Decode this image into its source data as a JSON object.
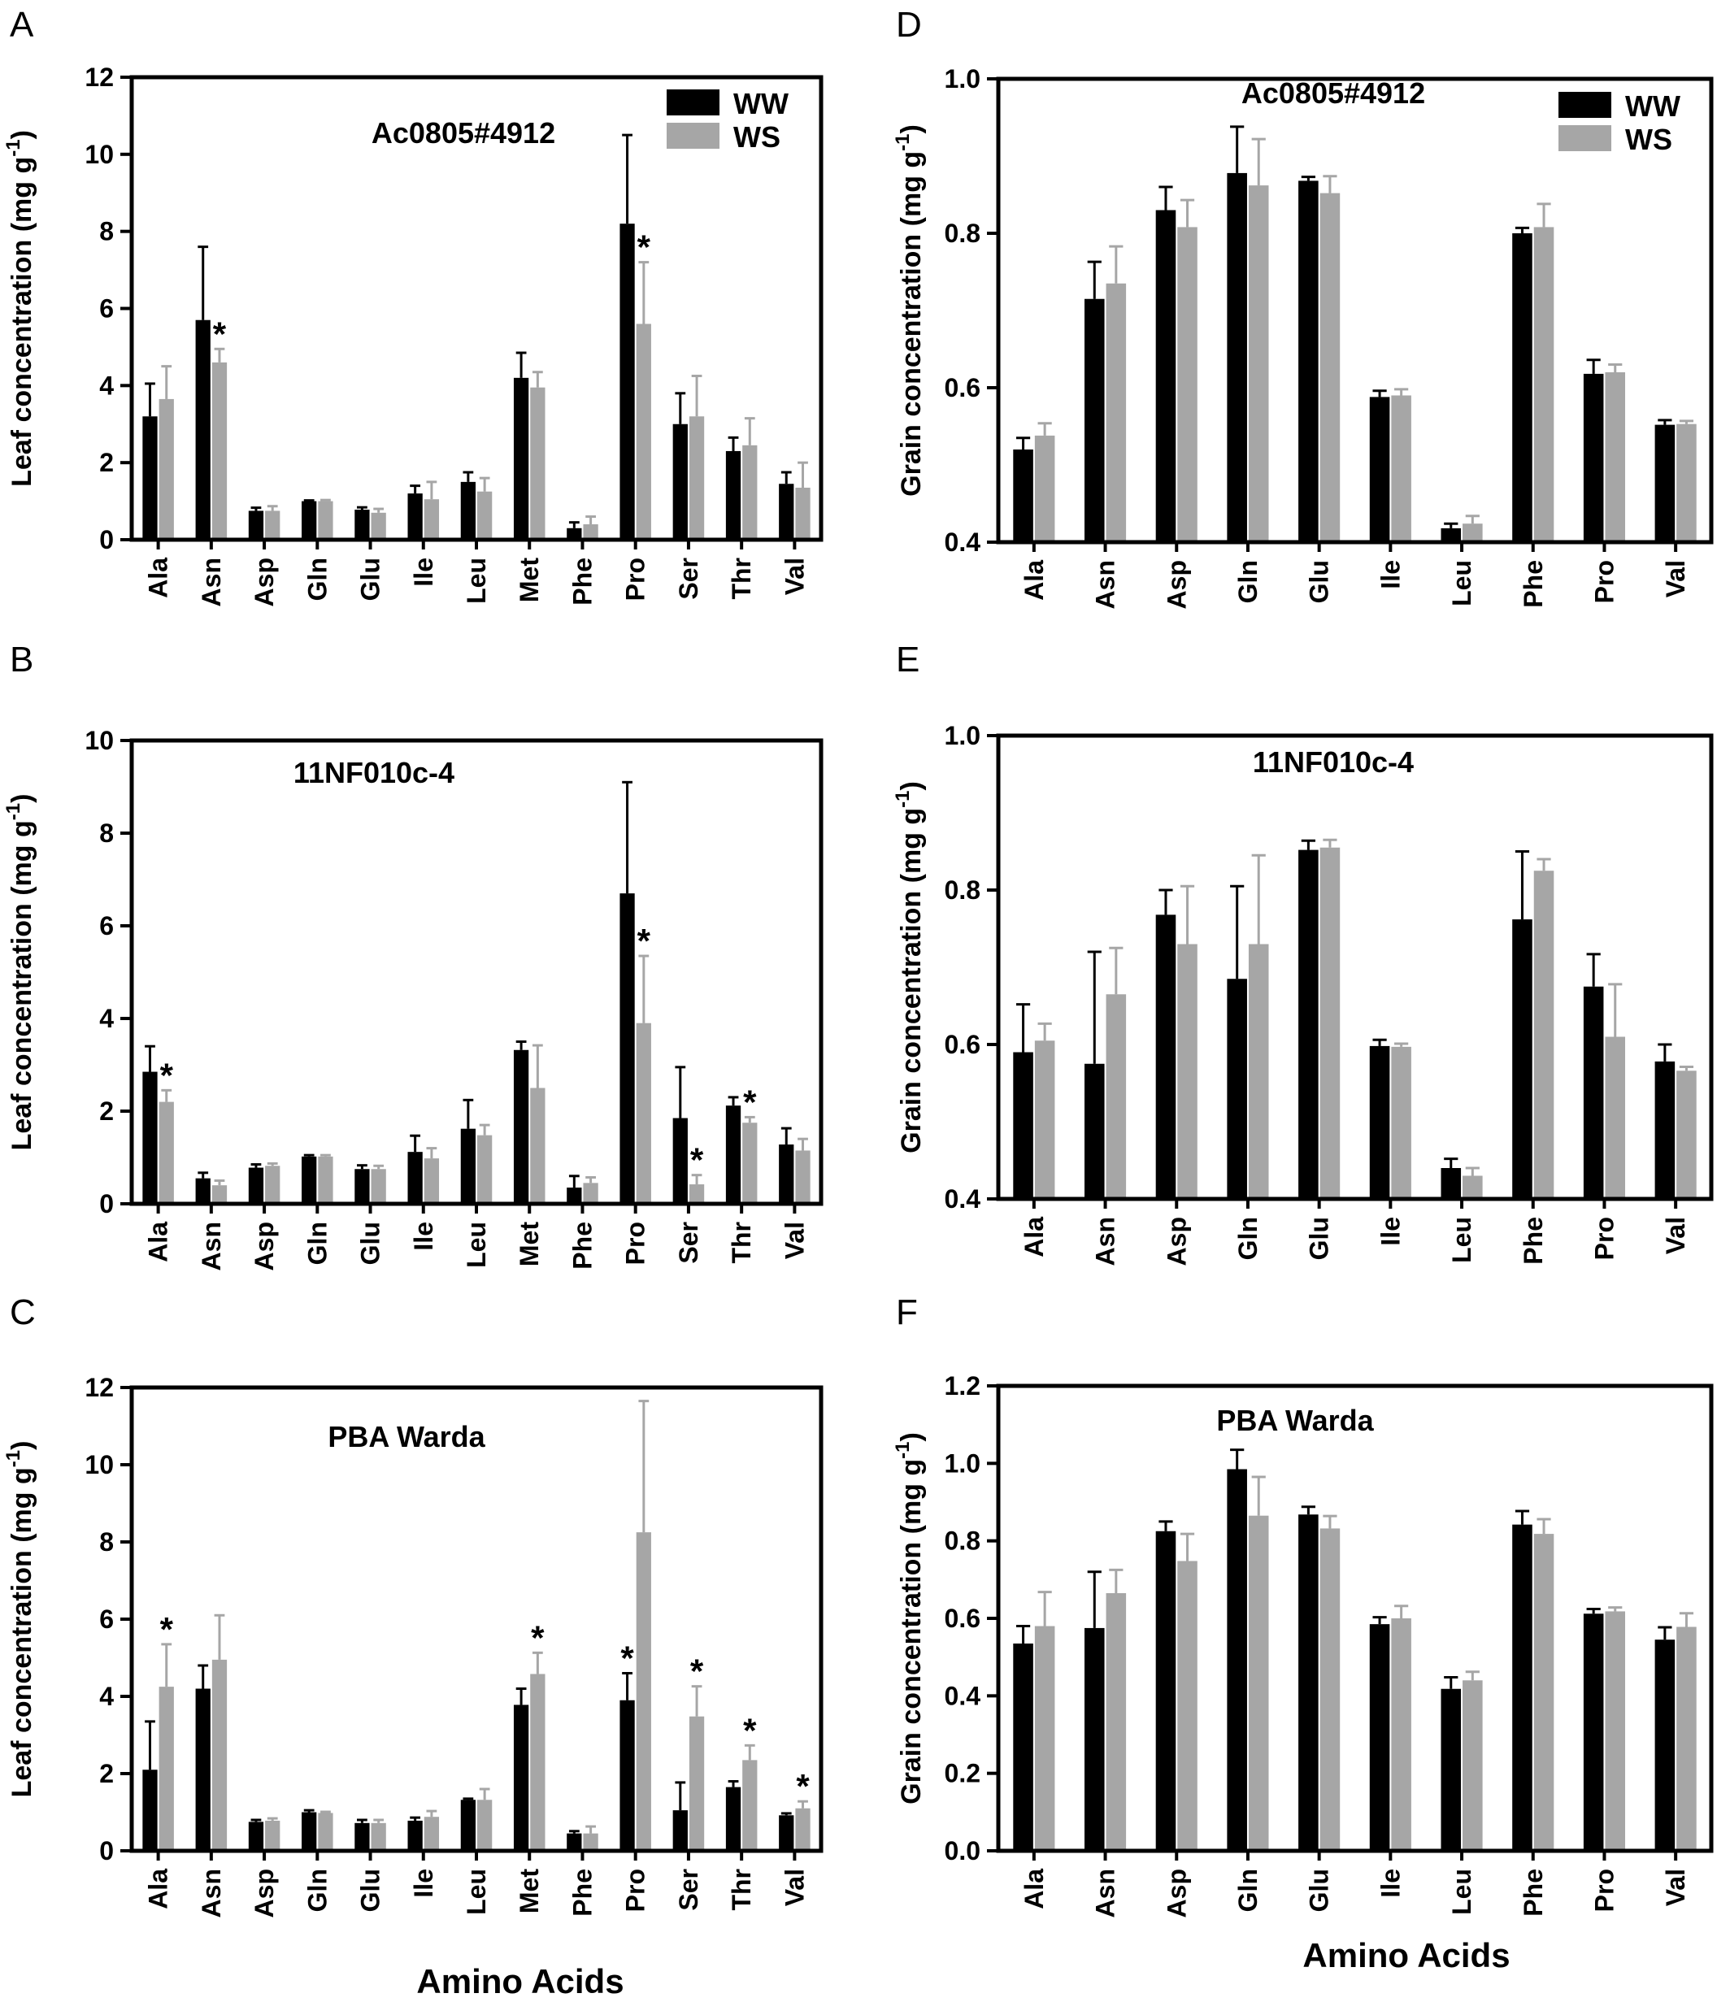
{
  "colors": {
    "WW": "#000000",
    "WS": "#a6a6a6"
  },
  "chart_data": [
    {
      "id": "A",
      "letter": "A",
      "type": "bar",
      "title": "Ac0805#4912",
      "ylabel": "Leaf concentration (mg g-1)",
      "ylim": [
        0,
        12
      ],
      "ystep": 2,
      "ytick_decimals": 0,
      "legend": {
        "show": true,
        "placement": "top-right"
      },
      "categories": [
        "Ala",
        "Asn",
        "Asp",
        "Gln",
        "Glu",
        "Ile",
        "Leu",
        "Met",
        "Phe",
        "Pro",
        "Ser",
        "Thr",
        "Val"
      ],
      "series": [
        {
          "name": "WW",
          "values": [
            3.2,
            5.7,
            0.75,
            1.0,
            0.78,
            1.2,
            1.5,
            4.2,
            0.3,
            8.2,
            3.0,
            2.3,
            1.45
          ],
          "errors": [
            0.85,
            1.9,
            0.08,
            0.02,
            0.06,
            0.2,
            0.25,
            0.65,
            0.15,
            2.3,
            0.8,
            0.35,
            0.3
          ]
        },
        {
          "name": "WS",
          "values": [
            3.65,
            4.6,
            0.75,
            1.0,
            0.7,
            1.05,
            1.25,
            3.95,
            0.4,
            5.6,
            3.2,
            2.45,
            1.35
          ],
          "errors": [
            0.85,
            0.35,
            0.12,
            0.03,
            0.1,
            0.45,
            0.35,
            0.4,
            0.2,
            1.6,
            1.05,
            0.7,
            0.65
          ]
        }
      ],
      "significance": [
        {
          "category": "Asn",
          "series": "WS",
          "label": "*"
        },
        {
          "category": "Pro",
          "series": "WS",
          "label": "*"
        }
      ]
    },
    {
      "id": "B",
      "letter": "B",
      "type": "bar",
      "title": "11NF010c-4",
      "ylabel": "Leaf concentration (mg g-1)",
      "ylim": [
        0,
        10
      ],
      "ystep": 2,
      "ytick_decimals": 0,
      "legend": {
        "show": false
      },
      "categories": [
        "Ala",
        "Asn",
        "Asp",
        "Gln",
        "Glu",
        "Ile",
        "Leu",
        "Met",
        "Phe",
        "Pro",
        "Ser",
        "Thr",
        "Val"
      ],
      "series": [
        {
          "name": "WW",
          "values": [
            2.85,
            0.55,
            0.78,
            1.02,
            0.75,
            1.12,
            1.62,
            3.32,
            0.35,
            6.7,
            1.85,
            2.12,
            1.28
          ],
          "errors": [
            0.55,
            0.12,
            0.07,
            0.03,
            0.08,
            0.35,
            0.62,
            0.18,
            0.25,
            2.4,
            1.1,
            0.18,
            0.35
          ]
        },
        {
          "name": "WS",
          "values": [
            2.2,
            0.4,
            0.82,
            1.02,
            0.75,
            0.98,
            1.48,
            2.5,
            0.45,
            3.9,
            0.42,
            1.75,
            1.15
          ],
          "errors": [
            0.25,
            0.1,
            0.05,
            0.03,
            0.07,
            0.22,
            0.22,
            0.92,
            0.12,
            1.45,
            0.2,
            0.12,
            0.25
          ]
        }
      ],
      "significance": [
        {
          "category": "Ala",
          "series": "WS",
          "label": "*"
        },
        {
          "category": "Pro",
          "series": "WS",
          "label": "*"
        },
        {
          "category": "Ser",
          "series": "WS",
          "label": "*"
        },
        {
          "category": "Thr",
          "series": "WS",
          "label": "*"
        }
      ]
    },
    {
      "id": "C",
      "letter": "C",
      "type": "bar",
      "title": "PBA Warda",
      "ylabel": "Leaf concentration (mg g-1)",
      "ylim": [
        0,
        12
      ],
      "ystep": 2,
      "ytick_decimals": 0,
      "legend": {
        "show": false
      },
      "categories": [
        "Ala",
        "Asn",
        "Asp",
        "Gln",
        "Glu",
        "Ile",
        "Leu",
        "Met",
        "Phe",
        "Pro",
        "Ser",
        "Thr",
        "Val"
      ],
      "series": [
        {
          "name": "WW",
          "values": [
            2.1,
            4.2,
            0.75,
            1.0,
            0.72,
            0.78,
            1.32,
            3.78,
            0.45,
            3.9,
            1.05,
            1.65,
            0.92
          ],
          "errors": [
            1.25,
            0.6,
            0.05,
            0.05,
            0.08,
            0.08,
            0.03,
            0.42,
            0.06,
            0.7,
            0.72,
            0.15,
            0.05
          ]
        },
        {
          "name": "WS",
          "values": [
            4.25,
            4.95,
            0.78,
            0.98,
            0.72,
            0.88,
            1.32,
            4.58,
            0.45,
            8.25,
            3.48,
            2.35,
            1.1
          ],
          "errors": [
            1.1,
            1.15,
            0.06,
            0.03,
            0.08,
            0.15,
            0.28,
            0.55,
            0.18,
            3.4,
            0.78,
            0.38,
            0.18
          ]
        }
      ],
      "significance": [
        {
          "category": "Ala",
          "series": "WS",
          "label": "*"
        },
        {
          "category": "Met",
          "series": "WS",
          "label": "*"
        },
        {
          "category": "Pro",
          "series": "WW",
          "label": "*"
        },
        {
          "category": "Ser",
          "series": "WS",
          "label": "*"
        },
        {
          "category": "Thr",
          "series": "WS",
          "label": "*"
        },
        {
          "category": "Val",
          "series": "WS",
          "label": "*"
        }
      ]
    },
    {
      "id": "D",
      "letter": "D",
      "type": "bar",
      "title": "Ac0805#4912",
      "ylabel": "Grain concentration (mg g-1)",
      "ylim": [
        0.4,
        1.0
      ],
      "ystep": 0.2,
      "ytick_decimals": 1,
      "legend": {
        "show": true,
        "placement": "top-right"
      },
      "categories": [
        "Ala",
        "Asn",
        "Asp",
        "Gln",
        "Glu",
        "Ile",
        "Leu",
        "Phe",
        "Pro",
        "Val"
      ],
      "series": [
        {
          "name": "WW",
          "values": [
            0.52,
            0.715,
            0.83,
            0.878,
            0.868,
            0.588,
            0.418,
            0.8,
            0.618,
            0.552
          ],
          "errors": [
            0.015,
            0.048,
            0.03,
            0.06,
            0.005,
            0.008,
            0.006,
            0.007,
            0.018,
            0.006
          ]
        },
        {
          "name": "WS",
          "values": [
            0.538,
            0.735,
            0.808,
            0.862,
            0.852,
            0.59,
            0.424,
            0.808,
            0.62,
            0.553
          ],
          "errors": [
            0.016,
            0.048,
            0.035,
            0.06,
            0.022,
            0.008,
            0.01,
            0.03,
            0.01,
            0.004
          ]
        }
      ],
      "significance": []
    },
    {
      "id": "E",
      "letter": "E",
      "type": "bar",
      "title": "11NF010c-4",
      "ylabel": "Grain concentration (mg g-1)",
      "ylim": [
        0.4,
        1.0
      ],
      "ystep": 0.2,
      "ytick_decimals": 1,
      "legend": {
        "show": false
      },
      "categories": [
        "Ala",
        "Asn",
        "Asp",
        "Gln",
        "Glu",
        "Ile",
        "Leu",
        "Phe",
        "Pro",
        "Val"
      ],
      "series": [
        {
          "name": "WW",
          "values": [
            0.59,
            0.575,
            0.768,
            0.685,
            0.852,
            0.598,
            0.44,
            0.762,
            0.675,
            0.578
          ],
          "errors": [
            0.062,
            0.145,
            0.032,
            0.12,
            0.012,
            0.008,
            0.012,
            0.088,
            0.042,
            0.022
          ]
        },
        {
          "name": "WS",
          "values": [
            0.605,
            0.665,
            0.73,
            0.73,
            0.855,
            0.597,
            0.43,
            0.825,
            0.61,
            0.566
          ],
          "errors": [
            0.022,
            0.06,
            0.075,
            0.115,
            0.01,
            0.004,
            0.01,
            0.015,
            0.068,
            0.005
          ]
        }
      ],
      "significance": []
    },
    {
      "id": "F",
      "letter": "F",
      "type": "bar",
      "title": "PBA Warda",
      "ylabel": "Grain concentration (mg g-1)",
      "ylim": [
        0.0,
        1.2
      ],
      "ystep": 0.2,
      "ytick_decimals": 1,
      "legend": {
        "show": false
      },
      "categories": [
        "Ala",
        "Asn",
        "Asp",
        "Gln",
        "Glu",
        "Ile",
        "Leu",
        "Phe",
        "Pro",
        "Val"
      ],
      "series": [
        {
          "name": "WW",
          "values": [
            0.535,
            0.575,
            0.825,
            0.985,
            0.868,
            0.585,
            0.418,
            0.842,
            0.612,
            0.545
          ],
          "errors": [
            0.045,
            0.145,
            0.025,
            0.05,
            0.02,
            0.018,
            0.03,
            0.035,
            0.012,
            0.032
          ]
        },
        {
          "name": "WS",
          "values": [
            0.58,
            0.665,
            0.748,
            0.865,
            0.832,
            0.6,
            0.44,
            0.818,
            0.618,
            0.578
          ],
          "errors": [
            0.088,
            0.06,
            0.07,
            0.1,
            0.032,
            0.032,
            0.022,
            0.038,
            0.01,
            0.035
          ]
        }
      ],
      "significance": []
    }
  ],
  "xlabels": {
    "left": "Amino Acids",
    "right": "Amino Acids"
  }
}
